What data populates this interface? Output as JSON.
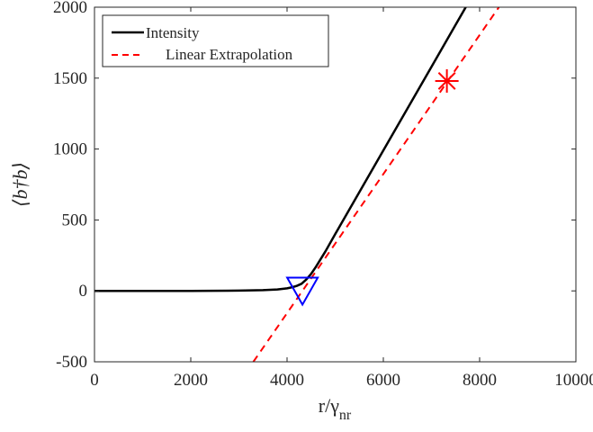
{
  "chart_data": {
    "type": "line",
    "xlabel": "r/γ",
    "xlabel_sub": "nr",
    "ylabel": "⟨b†b⟩",
    "xlim": [
      0,
      10000
    ],
    "ylim": [
      -500,
      2000
    ],
    "xticks": [
      0,
      2000,
      4000,
      6000,
      8000,
      10000
    ],
    "xtick_labels": [
      "0",
      "2000",
      "4000",
      "6000",
      "8000",
      "10000"
    ],
    "yticks": [
      -500,
      0,
      500,
      1000,
      1500,
      2000
    ],
    "ytick_labels": [
      "-500",
      "0",
      "500",
      "1000",
      "1500",
      "2000"
    ],
    "grid": false,
    "legend_position": "top-left",
    "series": [
      {
        "name": "Intensity",
        "style": "solid",
        "color": "#000000",
        "x": [
          0,
          1000,
          2000,
          3000,
          3500,
          3800,
          4000,
          4100,
          4200,
          4300,
          4400,
          4500,
          4600,
          4800,
          5000,
          6000,
          7000,
          8000,
          8400
        ],
        "y": [
          0,
          0,
          0,
          2,
          5,
          10,
          18,
          25,
          35,
          50,
          80,
          120,
          170,
          280,
          400,
          990,
          1580,
          2170,
          2400
        ]
      },
      {
        "name": "Linear Extrapolation",
        "style": "dashed",
        "color": "#ff0000",
        "x": [
          3300,
          8400
        ],
        "y": [
          -500,
          2000
        ]
      }
    ],
    "markers": [
      {
        "type": "asterisk",
        "x": 7320,
        "y": 1480,
        "color": "#ff0000"
      },
      {
        "type": "triangle-down",
        "x": 4320,
        "y": 40,
        "color": "#0000ff"
      }
    ]
  }
}
